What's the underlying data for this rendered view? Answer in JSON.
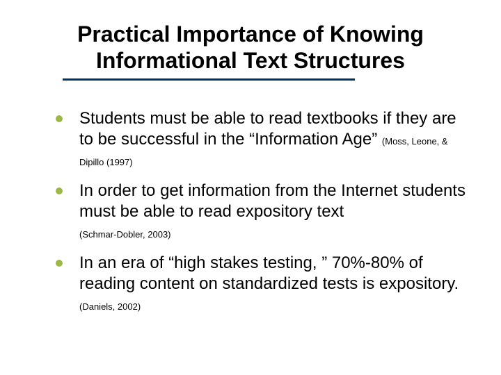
{
  "slide": {
    "title": "Practical Importance of Knowing Informational Text Structures",
    "title_fontsize": 32,
    "title_color": "#000000",
    "underline_color": "#003366",
    "underline_height": 3,
    "bullet_color": "#9eb848",
    "bullet_size": 10,
    "body_fontsize": 24,
    "citation_fontsize": 13,
    "background_color": "#ffffff",
    "bullets": [
      {
        "text": "Students must be able to read textbooks if they are to be successful in the “Information Age” ",
        "citation": "(Moss, Leone, & Dipillo  (1997)"
      },
      {
        "text": "In order to get information from the Internet students must be able to read expository text ",
        "citation": "(Schmar-Dobler, 2003)"
      },
      {
        "text": "In an era of  “high stakes testing, ” 70%-80% of reading content on standardized tests is expository. ",
        "citation": "(Daniels, 2002)"
      }
    ]
  }
}
